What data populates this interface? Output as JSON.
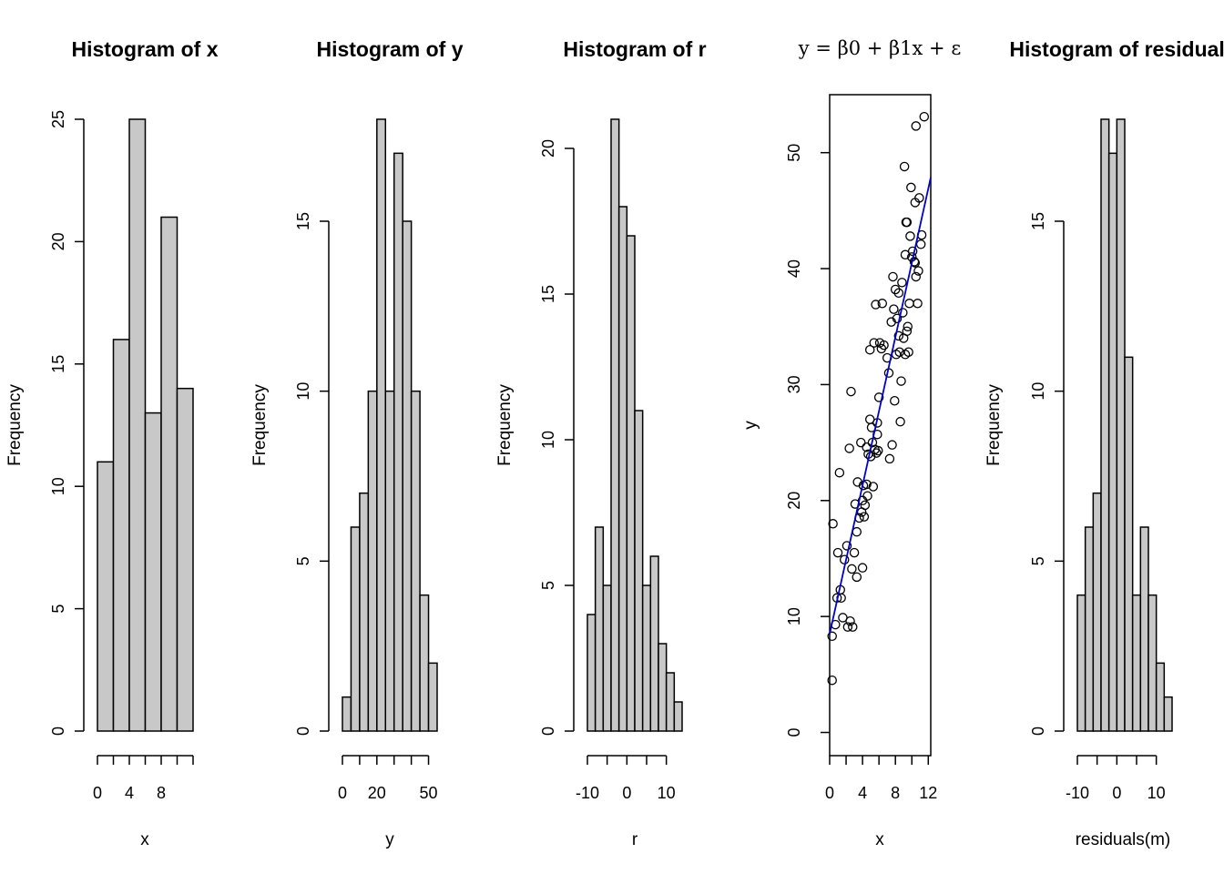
{
  "chart_data": [
    {
      "type": "bar",
      "title": "Histogram of x",
      "xlabel": "x",
      "ylabel": "Frequency",
      "bin_edges": [
        0,
        2,
        4,
        6,
        8,
        10,
        12
      ],
      "values": [
        11,
        16,
        25,
        13,
        21,
        14
      ],
      "xticks": [
        0,
        4,
        8
      ],
      "xtick_labels": [
        "0",
        "4",
        "8"
      ],
      "xaxis_range": [
        0,
        12
      ],
      "yticks": [
        0,
        5,
        10,
        15,
        20,
        25
      ],
      "ylim": [
        0,
        25
      ]
    },
    {
      "type": "bar",
      "title": "Histogram of y",
      "xlabel": "y",
      "ylabel": "Frequency",
      "bin_edges": [
        0,
        5,
        10,
        15,
        20,
        25,
        30,
        35,
        40,
        45,
        50,
        55
      ],
      "values": [
        1,
        6,
        7,
        10,
        18,
        10,
        17,
        15,
        10,
        4,
        2
      ],
      "xticks": [
        0,
        10,
        20,
        30,
        40,
        50
      ],
      "xtick_labels": [
        "0",
        "",
        "20",
        "",
        "",
        "50"
      ],
      "xaxis_range": [
        0,
        50
      ],
      "yticks": [
        0,
        5,
        10,
        15
      ],
      "ylim": [
        0,
        18
      ]
    },
    {
      "type": "bar",
      "title": "Histogram of r",
      "xlabel": "r",
      "ylabel": "Frequency",
      "bin_edges": [
        -10,
        -8,
        -6,
        -4,
        -2,
        0,
        2,
        4,
        6,
        8,
        10,
        12,
        14
      ],
      "values": [
        4,
        7,
        5,
        21,
        18,
        17,
        11,
        5,
        6,
        3,
        2,
        1
      ],
      "xticks": [
        -10,
        -5,
        0,
        5,
        10
      ],
      "xtick_labels": [
        "-10",
        "",
        "0",
        "",
        "10"
      ],
      "xaxis_range": [
        -10,
        10
      ],
      "yticks": [
        0,
        5,
        10,
        15,
        20
      ],
      "ylim": [
        0,
        21
      ]
    },
    {
      "type": "scatter",
      "title": "y = β0 + β1x + ε",
      "xlabel": "x",
      "ylabel": "y",
      "xlim": [
        0,
        12.3
      ],
      "ylim": [
        -2,
        55
      ],
      "xticks": [
        0,
        4,
        8,
        12
      ],
      "yticks": [
        0,
        10,
        20,
        30,
        40,
        50
      ],
      "fit_line": {
        "intercept": 8.5,
        "slope": 3.2,
        "color": "#0000cc"
      },
      "points": [
        [
          0.3,
          4.5
        ],
        [
          0.3,
          8.3
        ],
        [
          0.4,
          18.0
        ],
        [
          0.7,
          9.3
        ],
        [
          0.9,
          11.6
        ],
        [
          1.0,
          15.5
        ],
        [
          1.2,
          22.4
        ],
        [
          1.3,
          12.3
        ],
        [
          1.4,
          11.6
        ],
        [
          1.6,
          9.9
        ],
        [
          1.8,
          14.9
        ],
        [
          2.1,
          16.1
        ],
        [
          2.2,
          9.1
        ],
        [
          2.4,
          24.5
        ],
        [
          2.5,
          9.6
        ],
        [
          2.6,
          29.4
        ],
        [
          2.7,
          14.1
        ],
        [
          2.8,
          9.1
        ],
        [
          3.0,
          15.5
        ],
        [
          3.1,
          19.7
        ],
        [
          3.3,
          13.4
        ],
        [
          3.3,
          17.3
        ],
        [
          3.4,
          21.6
        ],
        [
          3.6,
          18.5
        ],
        [
          3.8,
          25.0
        ],
        [
          3.9,
          19.0
        ],
        [
          4.0,
          14.2
        ],
        [
          4.0,
          20.0
        ],
        [
          4.1,
          21.3
        ],
        [
          4.2,
          18.6
        ],
        [
          4.3,
          19.6
        ],
        [
          4.5,
          21.4
        ],
        [
          4.5,
          24.6
        ],
        [
          4.6,
          20.4
        ],
        [
          4.7,
          24.0
        ],
        [
          4.9,
          27.0
        ],
        [
          4.9,
          33.0
        ],
        [
          5.0,
          23.8
        ],
        [
          5.1,
          26.3
        ],
        [
          5.2,
          25.0
        ],
        [
          5.3,
          21.2
        ],
        [
          5.4,
          33.6
        ],
        [
          5.5,
          24.4
        ],
        [
          5.6,
          36.9
        ],
        [
          5.7,
          24.1
        ],
        [
          5.8,
          26.7
        ],
        [
          5.8,
          25.7
        ],
        [
          5.9,
          24.3
        ],
        [
          6.0,
          28.9
        ],
        [
          6.1,
          33.6
        ],
        [
          6.3,
          33.1
        ],
        [
          6.4,
          37.0
        ],
        [
          6.6,
          33.4
        ],
        [
          7.0,
          32.3
        ],
        [
          7.2,
          31.0
        ],
        [
          7.3,
          23.6
        ],
        [
          7.5,
          35.4
        ],
        [
          7.6,
          24.8
        ],
        [
          7.7,
          39.3
        ],
        [
          7.8,
          36.5
        ],
        [
          7.9,
          28.6
        ],
        [
          8.0,
          38.2
        ],
        [
          8.1,
          32.6
        ],
        [
          8.2,
          35.7
        ],
        [
          8.4,
          34.2
        ],
        [
          8.4,
          37.9
        ],
        [
          8.5,
          32.8
        ],
        [
          8.6,
          26.8
        ],
        [
          8.7,
          30.3
        ],
        [
          8.8,
          38.8
        ],
        [
          8.9,
          36.2
        ],
        [
          9.0,
          34.0
        ],
        [
          9.1,
          48.8
        ],
        [
          9.2,
          32.6
        ],
        [
          9.2,
          41.2
        ],
        [
          9.3,
          44.0
        ],
        [
          9.4,
          44.0
        ],
        [
          9.4,
          34.6
        ],
        [
          9.5,
          35.0
        ],
        [
          9.6,
          32.8
        ],
        [
          9.7,
          37.0
        ],
        [
          9.8,
          42.8
        ],
        [
          9.9,
          47.0
        ],
        [
          10.0,
          41.0
        ],
        [
          10.1,
          41.5
        ],
        [
          10.3,
          40.6
        ],
        [
          10.4,
          40.5
        ],
        [
          10.4,
          45.7
        ],
        [
          10.5,
          39.3
        ],
        [
          10.5,
          52.3
        ],
        [
          10.7,
          37.0
        ],
        [
          10.8,
          39.8
        ],
        [
          10.9,
          46.1
        ],
        [
          11.1,
          42.1
        ],
        [
          11.2,
          42.9
        ],
        [
          11.5,
          53.1
        ]
      ]
    },
    {
      "type": "bar",
      "title": "Histogram of residuals",
      "xlabel": "residuals(m)",
      "ylabel": "Frequency",
      "bin_edges": [
        -10,
        -8,
        -6,
        -4,
        -2,
        0,
        2,
        4,
        6,
        8,
        10,
        12,
        14
      ],
      "values": [
        4,
        6,
        7,
        18,
        17,
        18,
        11,
        4,
        6,
        4,
        2,
        1
      ],
      "xticks": [
        -10,
        -5,
        0,
        5,
        10
      ],
      "xtick_labels": [
        "-10",
        "",
        "0",
        "",
        "10"
      ],
      "xaxis_range": [
        -10,
        10
      ],
      "yticks": [
        0,
        5,
        10,
        15
      ],
      "ylim": [
        0,
        18
      ]
    }
  ]
}
